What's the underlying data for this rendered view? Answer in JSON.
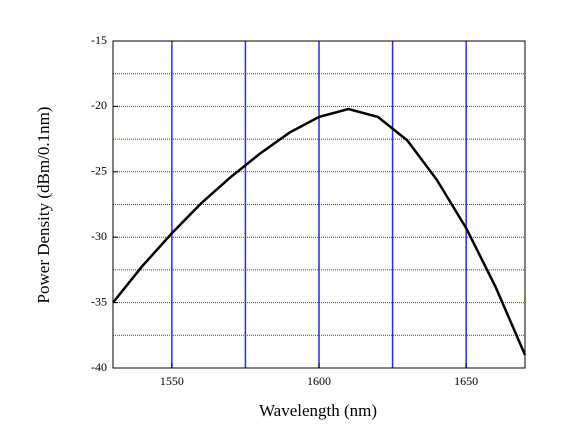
{
  "chart_data": {
    "type": "line",
    "x_label": "Wavelength (nm)",
    "y_label": "Power Density (dBm/0.1nm)",
    "x": [
      1530,
      1540,
      1550,
      1560,
      1570,
      1580,
      1590,
      1600,
      1610,
      1620,
      1630,
      1640,
      1650,
      1660,
      1670
    ],
    "series": [
      {
        "color": "#000000",
        "values": [
          -35,
          -32.2,
          -29.7,
          -27.4,
          -25.4,
          -23.6,
          -22.0,
          -20.8,
          -20.2,
          -20.8,
          -22.6,
          -25.6,
          -29.3,
          -33.8,
          -39
        ]
      }
    ],
    "xlim": [
      1530,
      1670
    ],
    "ylim": [
      -40,
      -15
    ],
    "xticks": [
      1550,
      1600,
      1650
    ],
    "yticks": [
      -40,
      -35,
      -30,
      -25,
      -20,
      -15
    ],
    "x_minor_grid": [
      1575,
      1625
    ],
    "y_minor_grid": [
      -37.5,
      -32.5,
      -27.5,
      -22.5,
      -17.5
    ],
    "grid": true,
    "grid_color": "#2a2ae8"
  }
}
